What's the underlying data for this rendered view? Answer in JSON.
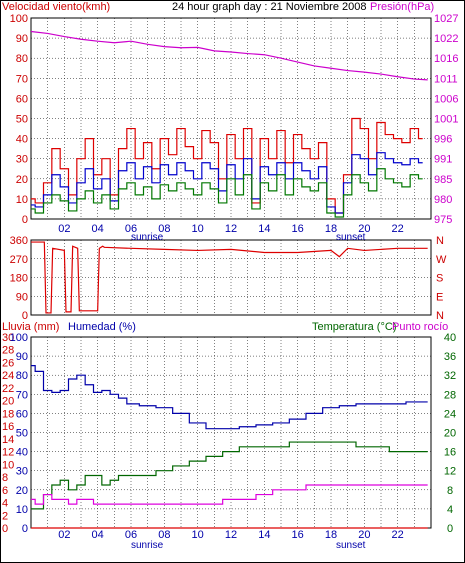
{
  "header": {
    "left_title": "Velocidad viento(kmh)",
    "center_title": "24 hour graph day : 21 Noviembre 2008",
    "right_title": "Presión(hPa)"
  },
  "bottom_header": {
    "left_title": "Lluvia (mm)",
    "second_title": "Humedad (%)",
    "right_title1": "Temperatura (°C)",
    "right_title2": "Punto rocío"
  },
  "x_labels": [
    "02",
    "04",
    "06",
    "08",
    "10",
    "12",
    "14",
    "16",
    "18",
    "20",
    "22"
  ],
  "sunrise_label": "sunrise",
  "sunset_label": "sunset",
  "colors": {
    "wind_axis": "#cc0000",
    "pressure_axis": "#cc00cc",
    "humidity_axis": "#0000aa",
    "temp_axis": "#006600",
    "wind_gust": "#dd0000",
    "wind_avg": "#0000cc",
    "wind_low": "#007700",
    "pressure": "#cc00cc",
    "direction": "#dd0000",
    "humidity": "#0000aa",
    "temperature": "#006600",
    "dewpoint": "#dd00dd",
    "rain": "#dd0000",
    "grid": "#000000"
  },
  "chart_data": [
    {
      "type": "line",
      "title": "24 hour graph day : 21 Noviembre 2008",
      "x_unit": "hour",
      "xlim": [
        0,
        24
      ],
      "y_left_label": "Velocidad viento(kmh)",
      "y_left_ticks": [
        "0",
        "10",
        "20",
        "30",
        "40",
        "50",
        "60",
        "70",
        "80",
        "90",
        "100"
      ],
      "y_left_lim": [
        0,
        100
      ],
      "y_right_label": "Presión(hPa)",
      "y_right_ticks": [
        "975",
        "980",
        "985",
        "991",
        "996",
        "1001",
        "1006",
        "1011",
        "1016",
        "1022",
        "1027"
      ],
      "y_right_lim": [
        975,
        1027
      ],
      "series": [
        {
          "axis": "left",
          "color_key": "wind_gust",
          "x": [
            0,
            0.5,
            1,
            1.5,
            2,
            2.5,
            3,
            3.5,
            4,
            4.5,
            5,
            5.5,
            6,
            6.5,
            7,
            7.5,
            8,
            8.5,
            9,
            9.5,
            10,
            10.5,
            11,
            11.5,
            12,
            12.5,
            13,
            13.5,
            14,
            14.5,
            15,
            15.5,
            16,
            16.5,
            17,
            17.5,
            18,
            18.5,
            19,
            19.5,
            20,
            20.5,
            21,
            21.5,
            22,
            22.5,
            23,
            23.5
          ],
          "y": [
            10,
            8,
            18,
            35,
            25,
            12,
            30,
            40,
            22,
            30,
            12,
            35,
            45,
            30,
            38,
            25,
            40,
            32,
            45,
            36,
            30,
            44,
            38,
            20,
            42,
            30,
            45,
            8,
            40,
            30,
            44,
            28,
            42,
            35,
            30,
            38,
            10,
            3,
            22,
            50,
            45,
            30,
            48,
            42,
            40,
            38,
            45,
            40
          ]
        },
        {
          "axis": "left",
          "color_key": "wind_avg",
          "x": [
            0,
            0.5,
            1,
            1.5,
            2,
            2.5,
            3,
            3.5,
            4,
            4.5,
            5,
            5.5,
            6,
            6.5,
            7,
            7.5,
            8,
            8.5,
            9,
            9.5,
            10,
            10.5,
            11,
            11.5,
            12,
            12.5,
            13,
            13.5,
            14,
            14.5,
            15,
            15.5,
            16,
            16.5,
            17,
            17.5,
            18,
            18.5,
            19,
            19.5,
            20,
            20.5,
            21,
            21.5,
            22,
            22.5,
            23,
            23.5
          ],
          "y": [
            7,
            6,
            12,
            22,
            16,
            8,
            18,
            25,
            15,
            20,
            9,
            24,
            28,
            20,
            26,
            18,
            27,
            22,
            28,
            24,
            20,
            28,
            25,
            14,
            27,
            20,
            30,
            10,
            26,
            22,
            28,
            20,
            28,
            24,
            20,
            26,
            6,
            3,
            18,
            32,
            30,
            22,
            33,
            30,
            28,
            27,
            30,
            28
          ]
        },
        {
          "axis": "left",
          "color_key": "wind_low",
          "x": [
            0,
            0.5,
            1,
            1.5,
            2,
            2.5,
            3,
            3.5,
            4,
            4.5,
            5,
            5.5,
            6,
            6.5,
            7,
            7.5,
            8,
            8.5,
            9,
            9.5,
            10,
            10.5,
            11,
            11.5,
            12,
            12.5,
            13,
            13.5,
            14,
            14.5,
            15,
            15.5,
            16,
            16.5,
            17,
            17.5,
            18,
            18.5,
            19,
            19.5,
            20,
            20.5,
            21,
            21.5,
            22,
            22.5,
            23,
            23.5
          ],
          "y": [
            5,
            3,
            8,
            12,
            9,
            4,
            10,
            14,
            8,
            12,
            5,
            15,
            18,
            12,
            16,
            10,
            17,
            14,
            18,
            15,
            12,
            18,
            15,
            8,
            20,
            12,
            22,
            5,
            18,
            14,
            22,
            12,
            20,
            16,
            14,
            18,
            3,
            1,
            12,
            22,
            18,
            14,
            25,
            20,
            18,
            16,
            22,
            20
          ]
        },
        {
          "axis": "right",
          "color_key": "pressure",
          "x": [
            0,
            1,
            2,
            3,
            4,
            5,
            6,
            7,
            8,
            9,
            10,
            11,
            12,
            13,
            14,
            15,
            16,
            17,
            18,
            19,
            20,
            21,
            22,
            23,
            23.8
          ],
          "y": [
            1023.5,
            1023,
            1022.2,
            1021.5,
            1021,
            1020.6,
            1021,
            1020.2,
            1019.6,
            1019.3,
            1019.4,
            1018.5,
            1018.2,
            1017.8,
            1017.5,
            1016.6,
            1015.6,
            1014.6,
            1014,
            1013.4,
            1013,
            1012.5,
            1011.8,
            1011.2,
            1011
          ]
        }
      ]
    },
    {
      "type": "line",
      "series_label": "wind direction",
      "xlim": [
        0,
        24
      ],
      "y_left_ticks": [
        "360",
        "270",
        "180",
        "90",
        "0"
      ],
      "y_left_lim": [
        0,
        360
      ],
      "y_right_ticks": [
        "N",
        "W",
        "S",
        "E",
        "N"
      ],
      "series": [
        {
          "color_key": "direction",
          "x": [
            0,
            0.8,
            0.9,
            1.2,
            1.3,
            2,
            2.1,
            2.4,
            2.5,
            2.8,
            2.9,
            4,
            4.1,
            4.3,
            4.4,
            6,
            8,
            10,
            12,
            14,
            16,
            18,
            18.5,
            19,
            20,
            22,
            23.8
          ],
          "y": [
            350,
            350,
            10,
            10,
            320,
            310,
            15,
            15,
            330,
            320,
            20,
            20,
            320,
            330,
            325,
            320,
            315,
            310,
            315,
            300,
            300,
            310,
            280,
            320,
            310,
            320,
            320
          ]
        }
      ]
    },
    {
      "type": "line",
      "xlim": [
        0,
        24
      ],
      "y_left_label": "Lluvia (mm)",
      "y_left_ticks": [
        "0",
        "2",
        "4",
        "6",
        "8",
        "10",
        "12",
        "14",
        "16",
        "18",
        "20",
        "22",
        "24",
        "26",
        "28",
        "30"
      ],
      "y_left_lim": [
        0,
        30
      ],
      "y_humidity_label": "Humedad (%)",
      "y_humidity_ticks": [
        "0",
        "10",
        "20",
        "30",
        "40",
        "50",
        "60",
        "70",
        "80",
        "90",
        "100"
      ],
      "y_humidity_lim": [
        0,
        100
      ],
      "y_right_label": "Temperatura (°C)",
      "y_right_label2": "Punto rocío",
      "y_right_ticks": [
        "0",
        "4",
        "8",
        "12",
        "16",
        "20",
        "24",
        "28",
        "32",
        "36",
        "40"
      ],
      "y_right_lim": [
        0,
        40
      ],
      "series": [
        {
          "axis": "humidity",
          "color_key": "humidity",
          "x": [
            0,
            0.5,
            1,
            1.5,
            2,
            2.5,
            3,
            3.5,
            4,
            4.5,
            5,
            5.5,
            6,
            7,
            8,
            9,
            10,
            11,
            12,
            13,
            14,
            15,
            16,
            17,
            18,
            19,
            20,
            21,
            22,
            23,
            23.8
          ],
          "y": [
            85,
            82,
            72,
            71,
            72,
            78,
            80,
            75,
            71,
            72,
            70,
            68,
            65,
            64,
            63,
            60,
            55,
            52,
            52,
            53,
            54,
            55,
            57,
            60,
            63,
            64,
            65,
            65,
            65,
            66,
            66
          ]
        },
        {
          "axis": "temp",
          "color_key": "temperature",
          "x": [
            0,
            0.5,
            1,
            1.5,
            2,
            2.5,
            3,
            3.5,
            4,
            4.5,
            5,
            5.5,
            6,
            7,
            8,
            9,
            10,
            11,
            12,
            13,
            14,
            15,
            16,
            17,
            18,
            19,
            20,
            21,
            22,
            23,
            23.8
          ],
          "y": [
            4,
            4,
            7,
            9,
            10,
            8,
            9,
            11,
            11,
            9,
            10,
            11,
            11,
            11,
            12,
            13,
            14,
            15,
            16,
            17,
            17,
            17,
            18,
            18,
            18,
            18,
            17,
            17,
            16,
            16,
            16
          ]
        },
        {
          "axis": "temp",
          "color_key": "dewpoint",
          "x": [
            0,
            0.5,
            1,
            1.5,
            2,
            2.5,
            3,
            3.5,
            4,
            4.5,
            5,
            5.5,
            6,
            7,
            8,
            9,
            10,
            11,
            12,
            13,
            14,
            15,
            16,
            17,
            18,
            19,
            20,
            21,
            22,
            23,
            23.8
          ],
          "y": [
            6,
            5,
            7,
            6,
            6,
            5,
            6,
            6,
            5,
            5,
            5,
            5,
            5,
            5,
            5,
            5,
            5,
            5,
            6,
            6,
            7,
            8,
            8,
            9,
            9,
            9,
            9,
            9,
            9,
            9,
            9
          ]
        },
        {
          "axis": "left",
          "color_key": "rain",
          "x": [
            0,
            23.8
          ],
          "y": [
            0,
            0
          ]
        }
      ]
    }
  ]
}
